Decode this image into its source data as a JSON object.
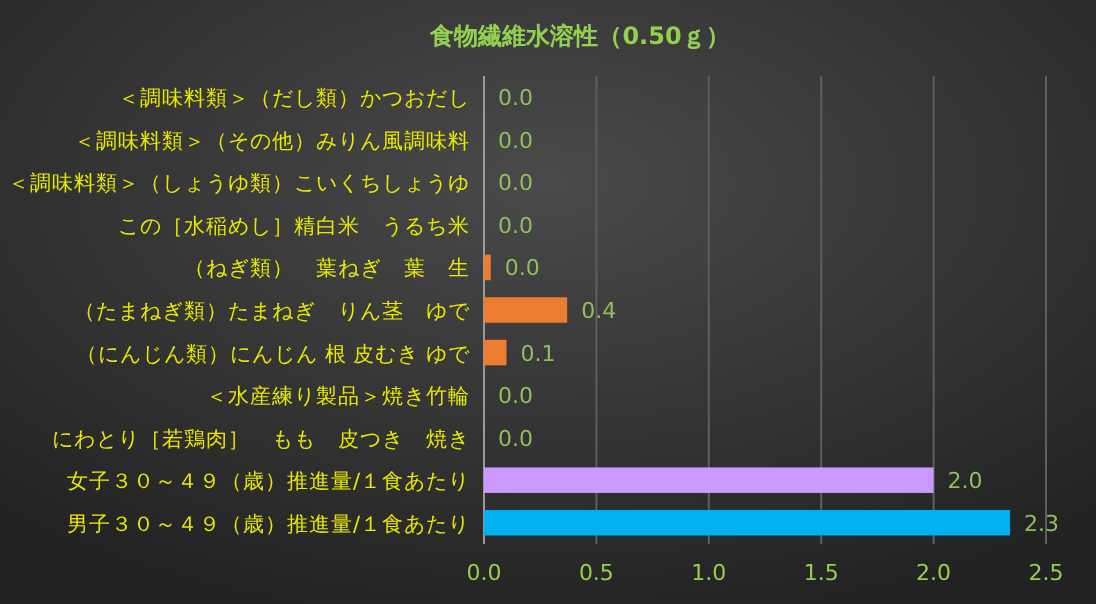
{
  "chart_data": {
    "type": "bar",
    "orientation": "horizontal",
    "title": "食物繊維水溶性（0.50ｇ）",
    "categories": [
      "＜調味料類＞（だし類）かつおだし",
      "＜調味料類＞（その他）みりん風調味料",
      "＜調味料類＞（しょうゆ類）こいくちしょうゆ",
      "この［水稲めし］精白米　うるち米",
      "（ねぎ類）　葉ねぎ　葉　生",
      "（たまねぎ類）たまねぎ　りん茎　ゆで",
      "（にんじん類）にんじん 根 皮むき ゆで",
      "＜水産練り製品＞焼き竹輪",
      "にわとり［若鶏肉］　もも　皮つき　焼き",
      "女子３０～４９（歳）推進量/１食あたり",
      "男子３０～４９（歳）推進量/１食あたり"
    ],
    "values": [
      0,
      0,
      0,
      0,
      0.03,
      0.37,
      0.1,
      0,
      0,
      2.0,
      2.34
    ],
    "value_labels": [
      "0.0",
      "0.0",
      "0.0",
      "0.0",
      "0.0",
      "0.4",
      "0.1",
      "0.0",
      "0.0",
      "2.0",
      "2.3"
    ],
    "colors": [
      "#ed7d31",
      "#ed7d31",
      "#ed7d31",
      "#ed7d31",
      "#ed7d31",
      "#ed7d31",
      "#ed7d31",
      "#ed7d31",
      "#ed7d31",
      "#cc99ff",
      "#00b0f0"
    ],
    "xlim": [
      0,
      2.5
    ],
    "xticks": [
      {
        "value": 0,
        "label": "0.0"
      },
      {
        "value": 0.5,
        "label": "0.5"
      },
      {
        "value": 1,
        "label": "1.0"
      },
      {
        "value": 1.5,
        "label": "1.5"
      },
      {
        "value": 2,
        "label": "2.0"
      },
      {
        "value": 2.5,
        "label": "2.5"
      }
    ],
    "grid": "x"
  }
}
